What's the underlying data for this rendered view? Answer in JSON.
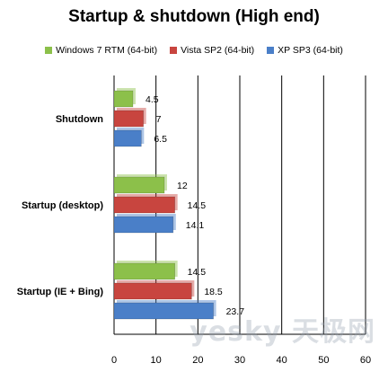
{
  "chart_data": {
    "type": "bar",
    "orientation": "horizontal",
    "title": "Startup & shutdown  (High end)",
    "categories": [
      "Shutdown",
      "Startup (desktop)",
      "Startup (IE + Bing)"
    ],
    "series": [
      {
        "name": "Windows 7 RTM  (64-bit)",
        "color": "#8cc04a",
        "values": [
          4.5,
          12,
          14.5
        ],
        "labels": [
          "4.5",
          "12",
          "14.5"
        ]
      },
      {
        "name": "Vista SP2 (64-bit)",
        "color": "#c8453f",
        "values": [
          7,
          14.5,
          18.5
        ],
        "labels": [
          "7",
          "14.5",
          "18.5"
        ]
      },
      {
        "name": "XP SP3 (64-bit)",
        "color": "#4a7fc8",
        "values": [
          6.5,
          14.1,
          23.7
        ],
        "labels": [
          "6.5",
          "14.1",
          "23.7"
        ]
      }
    ],
    "xlim": [
      0,
      60
    ],
    "xticks": [
      0,
      10,
      20,
      30,
      40,
      50,
      60
    ],
    "xlabel": "",
    "ylabel": "",
    "grid": true,
    "legend": "top"
  },
  "watermark": "yesky 天极网"
}
